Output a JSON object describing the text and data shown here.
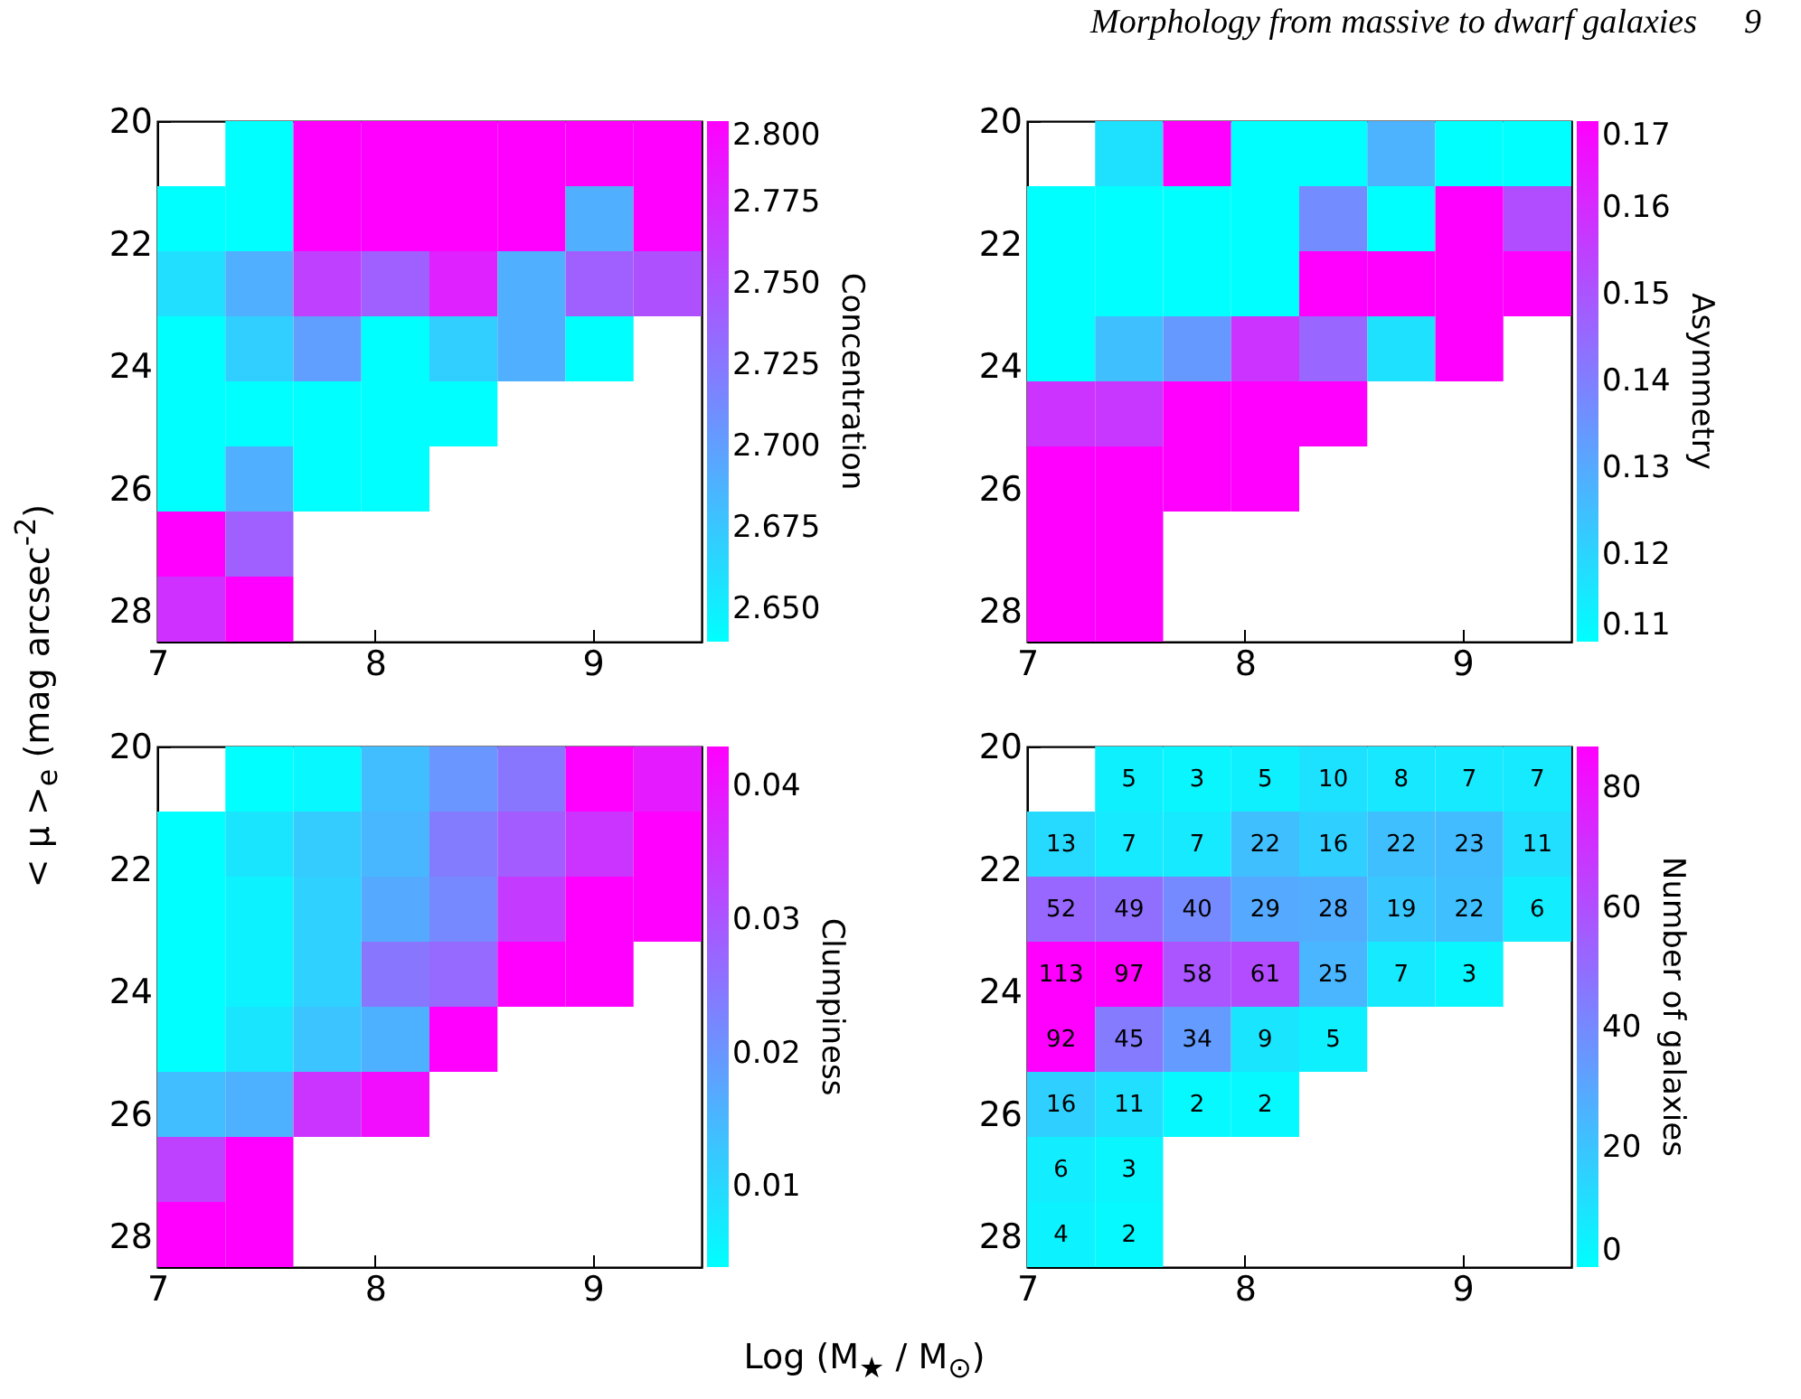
{
  "chart_data": [
    {
      "type": "heatmap",
      "annotations": [
        "Morphology from massive to dwarf galaxies",
        "9"
      ],
      "clabel": "Concentration",
      "x": [
        7.15625,
        7.46875,
        7.78125,
        8.09375,
        8.40625,
        8.71875,
        9.03125,
        9.34375
      ],
      "y": [
        20.53125,
        21.59375,
        22.65625,
        23.71875,
        24.78125,
        25.84375,
        26.90625,
        27.96875
      ],
      "xlim": [
        7,
        9.5
      ],
      "xticks": [
        7,
        8,
        9
      ],
      "ylim": [
        28.5,
        20
      ],
      "yticks": [
        20,
        22,
        24,
        26,
        28
      ],
      "clim": [
        2.64,
        2.8
      ],
      "cticks": [
        {
          "value": 2.65,
          "label": "2.650"
        },
        {
          "value": 2.675,
          "label": "2.675"
        },
        {
          "value": 2.7,
          "label": "2.700"
        },
        {
          "value": 2.725,
          "label": "2.725"
        },
        {
          "value": 2.75,
          "label": "2.750"
        },
        {
          "value": 2.775,
          "label": "2.775"
        },
        {
          "value": 2.8,
          "label": "2.800"
        }
      ],
      "cells": [
        [
          null,
          2.64,
          2.8,
          2.8,
          2.8,
          2.8,
          2.8,
          2.8
        ],
        [
          2.64,
          2.64,
          2.8,
          2.8,
          2.8,
          2.8,
          2.69,
          2.8
        ],
        [
          2.66,
          2.69,
          2.76,
          2.74,
          2.78,
          2.69,
          2.74,
          2.75
        ],
        [
          2.64,
          2.67,
          2.7,
          2.64,
          2.67,
          2.69,
          2.64,
          null
        ],
        [
          2.64,
          2.64,
          2.64,
          2.64,
          2.64,
          null,
          null,
          null
        ],
        [
          2.64,
          2.69,
          2.64,
          2.64,
          null,
          null,
          null,
          null
        ],
        [
          2.8,
          2.74,
          null,
          null,
          null,
          null,
          null,
          null
        ],
        [
          2.77,
          2.8,
          null,
          null,
          null,
          null,
          null,
          null
        ]
      ]
    },
    {
      "type": "heatmap",
      "clabel": "Asymmetry",
      "x": [
        7.15625,
        7.46875,
        7.78125,
        8.09375,
        8.40625,
        8.71875,
        9.03125,
        9.34375
      ],
      "y": [
        20.53125,
        21.59375,
        22.65625,
        23.71875,
        24.78125,
        25.84375,
        26.90625,
        27.96875
      ],
      "xlim": [
        7,
        9.5
      ],
      "xticks": [
        7,
        8,
        9
      ],
      "ylim": [
        28.5,
        20
      ],
      "yticks": [
        20,
        22,
        24,
        26,
        28
      ],
      "clim": [
        0.11,
        0.17
      ],
      "cticks": [
        0.11,
        0.12,
        0.13,
        0.14,
        0.15,
        0.16,
        0.17
      ],
      "cells": [
        [
          null,
          0.117,
          0.17,
          0.11,
          0.11,
          0.128,
          0.11,
          0.11
        ],
        [
          0.11,
          0.11,
          0.11,
          0.11,
          0.137,
          0.11,
          0.17,
          0.152
        ],
        [
          0.11,
          0.11,
          0.11,
          0.11,
          0.17,
          0.17,
          0.17,
          0.17
        ],
        [
          0.11,
          0.125,
          0.134,
          0.158,
          0.146,
          0.117,
          0.17,
          null
        ],
        [
          0.158,
          0.157,
          0.17,
          0.17,
          0.17,
          null,
          null,
          null
        ],
        [
          0.17,
          0.17,
          0.17,
          0.17,
          null,
          null,
          null,
          null
        ],
        [
          0.17,
          0.17,
          null,
          null,
          null,
          null,
          null,
          null
        ],
        [
          0.17,
          0.17,
          null,
          null,
          null,
          null,
          null,
          null
        ]
      ]
    },
    {
      "type": "heatmap",
      "clabel": "Clumpiness",
      "xlabel": "Log (M$_{★}$ / M$_{⊙}$)",
      "ylabel": "< μ >$_{e}$ (mag arcsec$^{-2}$)",
      "x": [
        7.15625,
        7.46875,
        7.78125,
        8.09375,
        8.40625,
        8.71875,
        9.03125,
        9.34375
      ],
      "y": [
        20.53125,
        21.59375,
        22.65625,
        23.71875,
        24.78125,
        25.84375,
        26.90625,
        27.96875
      ],
      "xlim": [
        7,
        9.5
      ],
      "xticks": [
        7,
        8,
        9
      ],
      "ylim": [
        28.5,
        20
      ],
      "yticks": [
        20,
        22,
        24,
        26,
        28
      ],
      "clim": [
        0.004,
        0.043
      ],
      "cticks": [
        0.01,
        0.02,
        0.03,
        0.04
      ],
      "cells": [
        [
          null,
          0.004,
          0.005,
          0.014,
          0.02,
          0.025,
          0.043,
          0.039
        ],
        [
          0.004,
          0.008,
          0.012,
          0.015,
          0.024,
          0.029,
          0.035,
          0.043
        ],
        [
          0.004,
          0.006,
          0.011,
          0.017,
          0.022,
          0.034,
          0.043,
          0.043
        ],
        [
          0.004,
          0.006,
          0.011,
          0.025,
          0.027,
          0.043,
          0.043,
          null
        ],
        [
          0.004,
          0.008,
          0.013,
          0.016,
          0.043,
          null,
          null,
          null
        ],
        [
          0.014,
          0.016,
          0.035,
          0.041,
          null,
          null,
          null,
          null
        ],
        [
          0.033,
          0.043,
          null,
          null,
          null,
          null,
          null,
          null
        ],
        [
          0.043,
          0.043,
          null,
          null,
          null,
          null,
          null,
          null
        ]
      ]
    },
    {
      "type": "heatmap",
      "clabel": "Number of galaxies",
      "data_labels": true,
      "x": [
        7.15625,
        7.46875,
        7.78125,
        8.09375,
        8.40625,
        8.71875,
        9.03125,
        9.34375
      ],
      "y": [
        20.53125,
        21.59375,
        22.65625,
        23.71875,
        24.78125,
        25.84375,
        26.90625,
        27.96875
      ],
      "xlim": [
        7,
        9.5
      ],
      "xticks": [
        7,
        8,
        9
      ],
      "ylim": [
        28.5,
        20
      ],
      "yticks": [
        20,
        22,
        24,
        26,
        28
      ],
      "clim": [
        0,
        87
      ],
      "cticks": [
        0,
        20,
        40,
        60,
        80
      ],
      "cells": [
        [
          null,
          5,
          3,
          5,
          10,
          8,
          7,
          7
        ],
        [
          13,
          7,
          7,
          22,
          16,
          22,
          23,
          11
        ],
        [
          52,
          49,
          40,
          29,
          28,
          19,
          22,
          6
        ],
        [
          113,
          97,
          58,
          61,
          25,
          7,
          3,
          null
        ],
        [
          92,
          45,
          34,
          9,
          5,
          null,
          null,
          null
        ],
        [
          16,
          11,
          2,
          2,
          null,
          null,
          null,
          null
        ],
        [
          6,
          3,
          null,
          null,
          null,
          null,
          null,
          null
        ],
        [
          4,
          2,
          null,
          null,
          null,
          null,
          null,
          null
        ]
      ]
    }
  ]
}
